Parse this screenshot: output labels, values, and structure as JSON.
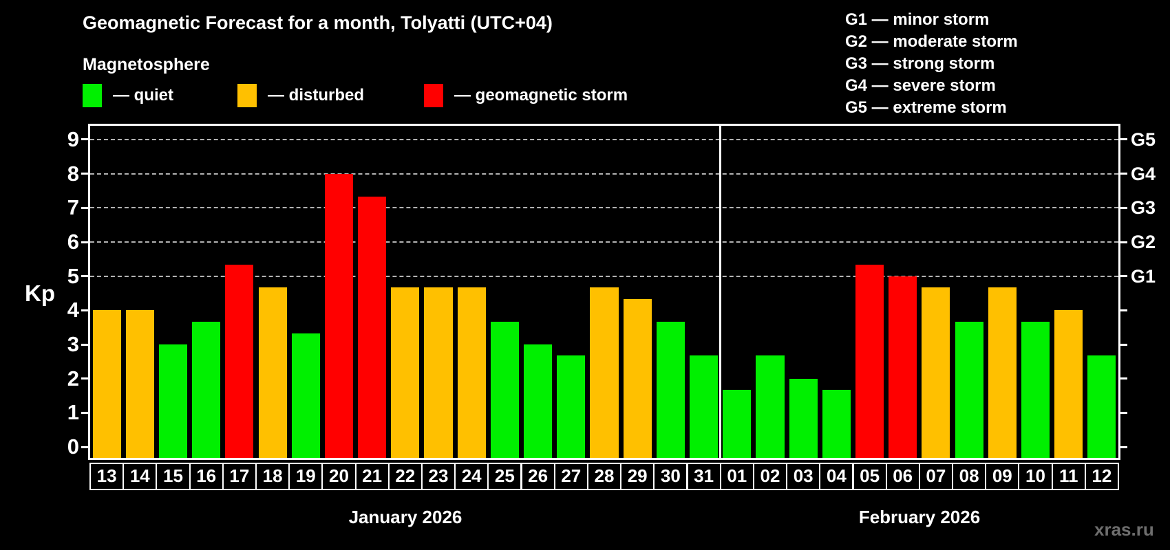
{
  "header": {
    "title": "Geomagnetic Forecast for a month, Tolyatti (UTC+04)",
    "subtitle": "Magnetosphere"
  },
  "legend": {
    "items": [
      {
        "label": "— quiet",
        "state": "quiet",
        "color": "#00f000"
      },
      {
        "label": "— disturbed",
        "state": "disturbed",
        "color": "#ffc000"
      },
      {
        "label": "— geomagnetic storm",
        "state": "storm",
        "color": "#ff0000"
      }
    ]
  },
  "storm_scale": {
    "lines": [
      "G1 — minor storm",
      "G2 — moderate storm",
      "G3 — strong storm",
      "G4 — severe storm",
      "G5 — extreme storm"
    ]
  },
  "watermark": "xras.ru",
  "chart_data": {
    "type": "bar",
    "ylabel": "Kp",
    "ylim": [
      -0.32,
      9.4
    ],
    "y_ticks": [
      0,
      1,
      2,
      3,
      4,
      5,
      6,
      7,
      8,
      9
    ],
    "grid_levels": [
      5,
      6,
      7,
      8,
      9
    ],
    "grid_on": true,
    "right_axis": [
      {
        "kp": 5,
        "label": "G1"
      },
      {
        "kp": 6,
        "label": "G2"
      },
      {
        "kp": 7,
        "label": "G3"
      },
      {
        "kp": 8,
        "label": "G4"
      },
      {
        "kp": 9,
        "label": "G5"
      }
    ],
    "colors": {
      "quiet": "#00f000",
      "disturbed": "#ffc000",
      "storm": "#ff0000"
    },
    "months": [
      {
        "label": "January 2026",
        "days": [
          {
            "day": "13",
            "kp": 4.0,
            "state": "disturbed"
          },
          {
            "day": "14",
            "kp": 4.0,
            "state": "disturbed"
          },
          {
            "day": "15",
            "kp": 3.0,
            "state": "quiet"
          },
          {
            "day": "16",
            "kp": 3.67,
            "state": "quiet"
          },
          {
            "day": "17",
            "kp": 5.33,
            "state": "storm"
          },
          {
            "day": "18",
            "kp": 4.67,
            "state": "disturbed"
          },
          {
            "day": "19",
            "kp": 3.33,
            "state": "quiet"
          },
          {
            "day": "20",
            "kp": 8.0,
            "state": "storm"
          },
          {
            "day": "21",
            "kp": 7.33,
            "state": "storm"
          },
          {
            "day": "22",
            "kp": 4.67,
            "state": "disturbed"
          },
          {
            "day": "23",
            "kp": 4.67,
            "state": "disturbed"
          },
          {
            "day": "24",
            "kp": 4.67,
            "state": "disturbed"
          },
          {
            "day": "25",
            "kp": 3.67,
            "state": "quiet"
          },
          {
            "day": "26",
            "kp": 3.0,
            "state": "quiet"
          },
          {
            "day": "27",
            "kp": 2.67,
            "state": "quiet"
          },
          {
            "day": "28",
            "kp": 4.67,
            "state": "disturbed"
          },
          {
            "day": "29",
            "kp": 4.33,
            "state": "disturbed"
          },
          {
            "day": "30",
            "kp": 3.67,
            "state": "quiet"
          },
          {
            "day": "31",
            "kp": 2.67,
            "state": "quiet"
          }
        ]
      },
      {
        "label": "February 2026",
        "days": [
          {
            "day": "01",
            "kp": 1.67,
            "state": "quiet"
          },
          {
            "day": "02",
            "kp": 2.67,
            "state": "quiet"
          },
          {
            "day": "03",
            "kp": 2.0,
            "state": "quiet"
          },
          {
            "day": "04",
            "kp": 1.67,
            "state": "quiet"
          },
          {
            "day": "05",
            "kp": 5.33,
            "state": "storm"
          },
          {
            "day": "06",
            "kp": 5.0,
            "state": "storm"
          },
          {
            "day": "07",
            "kp": 4.67,
            "state": "disturbed"
          },
          {
            "day": "08",
            "kp": 3.67,
            "state": "quiet"
          },
          {
            "day": "09",
            "kp": 4.67,
            "state": "disturbed"
          },
          {
            "day": "10",
            "kp": 3.67,
            "state": "quiet"
          },
          {
            "day": "11",
            "kp": 4.0,
            "state": "disturbed"
          },
          {
            "day": "12",
            "kp": 2.67,
            "state": "quiet"
          }
        ]
      }
    ]
  }
}
